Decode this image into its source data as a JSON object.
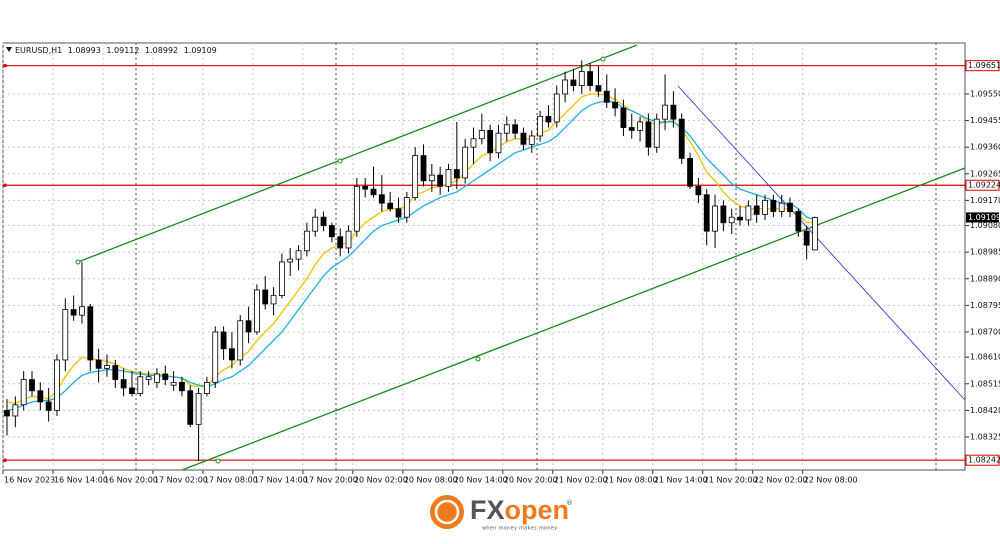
{
  "chart_data": {
    "type": "candlestick",
    "symbol": "EURUSD,H1",
    "categories": [
      "16 Nov 2023",
      null,
      null,
      null,
      null,
      null,
      "16 Nov 14:00",
      null,
      null,
      null,
      null,
      null,
      "16 Nov 20:00",
      null,
      null,
      null,
      null,
      null,
      "17 Nov 02:00",
      null,
      null,
      null,
      null,
      null,
      "17 Nov 08:00",
      null,
      null,
      null,
      null,
      null,
      "17 Nov 14:00",
      null,
      null,
      null,
      null,
      null,
      "17 Nov 20:00",
      null,
      null,
      null,
      null,
      null,
      "20 Nov 02:00",
      null,
      null,
      null,
      null,
      null,
      "20 Nov 08:00",
      null,
      null,
      null,
      null,
      null,
      "20 Nov 14:00",
      null,
      null,
      null,
      null,
      null,
      "20 Nov 20:00",
      null,
      null,
      null,
      null,
      null,
      "21 Nov 02:00",
      null,
      null,
      null,
      null,
      null,
      "21 Nov 08:00",
      null,
      null,
      null,
      null,
      null,
      "21 Nov 14:00",
      null,
      null,
      null,
      null,
      null,
      "21 Nov 20:00",
      null,
      null,
      null,
      null,
      null,
      "22 Nov 02:00",
      null,
      null,
      null,
      null,
      null,
      "22 Nov 08:00",
      null
    ],
    "open": [
      1.0842,
      1.084,
      1.0844,
      1.0853,
      1.0849,
      1.0845,
      1.0842,
      1.086,
      1.0878,
      1.0876,
      1.0879,
      1.086,
      1.0857,
      1.0858,
      1.0853,
      1.085,
      1.0848,
      1.0853,
      1.0852,
      1.0855,
      1.0851,
      1.0852,
      1.0849,
      1.0837,
      1.0848,
      1.0852,
      1.087,
      1.0864,
      1.086,
      1.0874,
      1.087,
      1.0885,
      1.088,
      1.0883,
      1.0895,
      1.0896,
      1.0899,
      1.0906,
      1.0911,
      1.0908,
      1.0904,
      1.09,
      1.0906,
      1.0922,
      1.0921,
      1.0919,
      1.0916,
      1.0914,
      1.0911,
      1.0918,
      1.0933,
      1.0924,
      1.0926,
      1.0922,
      1.0928,
      1.0925,
      1.0936,
      1.0939,
      1.0942,
      1.0934,
      1.0941,
      1.0944,
      1.0941,
      1.0937,
      1.094,
      1.0947,
      1.0945,
      1.0955,
      1.096,
      1.0958,
      1.0963,
      1.0958,
      1.0956,
      1.0952,
      1.095,
      1.0943,
      1.0942,
      1.0945,
      1.0936,
      1.0946,
      1.0951,
      1.0946,
      1.0932,
      1.0922,
      1.0919,
      1.0906,
      1.0915,
      1.0909,
      1.0911,
      1.091,
      1.0915,
      1.0912,
      1.0917,
      1.0913,
      1.0916,
      1.0913,
      1.0906,
      1.08993
    ],
    "high": [
      1.0846,
      1.0847,
      1.0856,
      1.0856,
      1.0852,
      1.085,
      1.0862,
      1.0882,
      1.0883,
      1.0895,
      1.088,
      1.0864,
      1.0862,
      1.086,
      1.0857,
      1.0856,
      1.0856,
      1.0856,
      1.0857,
      1.0858,
      1.0856,
      1.0854,
      1.0851,
      1.085,
      1.0854,
      1.0872,
      1.0872,
      1.087,
      1.0876,
      1.0879,
      1.0887,
      1.089,
      1.0886,
      1.0898,
      1.09,
      1.0901,
      1.0909,
      1.0914,
      1.0913,
      1.0909,
      1.0907,
      1.0908,
      1.0925,
      1.0925,
      1.0929,
      1.0926,
      1.092,
      1.0918,
      1.092,
      1.0936,
      1.0937,
      1.093,
      1.0929,
      1.093,
      1.0945,
      1.0939,
      1.0943,
      1.0948,
      1.0944,
      1.0944,
      1.0947,
      1.0946,
      1.0943,
      1.0942,
      1.0949,
      1.0951,
      1.0958,
      1.0963,
      1.0964,
      1.0967,
      1.0966,
      1.0965,
      1.0962,
      1.0957,
      1.0953,
      1.0948,
      1.0947,
      1.0948,
      1.0948,
      1.0962,
      1.0956,
      1.0948,
      1.0934,
      1.0925,
      1.0921,
      1.0919,
      1.0917,
      1.0914,
      1.0915,
      1.0917,
      1.0919,
      1.0919,
      1.0919,
      1.0919,
      1.0918,
      1.0914,
      1.0908,
      1.09112
    ],
    "low": [
      1.0833,
      1.0836,
      1.0842,
      1.0847,
      1.0842,
      1.0838,
      1.084,
      1.0856,
      1.0874,
      1.0873,
      1.0856,
      1.0852,
      1.0854,
      1.085,
      1.0847,
      1.0847,
      1.0847,
      1.0851,
      1.085,
      1.0851,
      1.0849,
      1.0847,
      1.0836,
      1.0824,
      1.0847,
      1.085,
      1.086,
      1.0857,
      1.0858,
      1.0866,
      1.0869,
      1.0878,
      1.0876,
      1.0882,
      1.089,
      1.0892,
      1.0897,
      1.0904,
      1.0906,
      1.0902,
      1.0897,
      1.0898,
      1.0904,
      1.0918,
      1.0918,
      1.0913,
      1.0913,
      1.0909,
      1.0909,
      1.0917,
      1.0922,
      1.092,
      1.0919,
      1.092,
      1.0921,
      1.0923,
      1.093,
      1.0937,
      1.0931,
      1.0932,
      1.0938,
      1.0939,
      1.0935,
      1.0934,
      1.0938,
      1.0943,
      1.0943,
      1.0952,
      1.0956,
      1.0955,
      1.0956,
      1.0954,
      1.095,
      1.0947,
      1.094,
      1.0939,
      1.0938,
      1.0933,
      1.0934,
      1.0942,
      1.0943,
      1.093,
      1.0921,
      1.0916,
      1.0901,
      1.09,
      1.0906,
      1.0905,
      1.0908,
      1.0908,
      1.0909,
      1.091,
      1.0911,
      1.0911,
      1.0911,
      1.0904,
      1.0896,
      1.08992
    ],
    "close": [
      1.084,
      1.0844,
      1.0853,
      1.0849,
      1.0845,
      1.0842,
      1.086,
      1.0878,
      1.0876,
      1.0879,
      1.086,
      1.0857,
      1.0858,
      1.0853,
      1.085,
      1.0848,
      1.0854,
      1.0854,
      1.0855,
      1.0853,
      1.0852,
      1.0849,
      1.0837,
      1.0848,
      1.0852,
      1.087,
      1.0864,
      1.086,
      1.0874,
      1.087,
      1.0885,
      1.088,
      1.0883,
      1.0895,
      1.0896,
      1.0899,
      1.0906,
      1.0911,
      1.0908,
      1.0904,
      1.09,
      1.0906,
      1.0922,
      1.0921,
      1.0919,
      1.0916,
      1.0914,
      1.0911,
      1.0918,
      1.0933,
      1.0924,
      1.0926,
      1.0922,
      1.0928,
      1.0925,
      1.0936,
      1.0939,
      1.0942,
      1.0934,
      1.0941,
      1.0944,
      1.0941,
      1.0937,
      1.094,
      1.0947,
      1.0945,
      1.0955,
      1.096,
      1.0958,
      1.0963,
      1.0958,
      1.0956,
      1.0952,
      1.095,
      1.0943,
      1.0942,
      1.0945,
      1.0936,
      1.0946,
      1.0951,
      1.0946,
      1.0932,
      1.0922,
      1.0919,
      1.0906,
      1.0915,
      1.0909,
      1.0911,
      1.091,
      1.0915,
      1.0912,
      1.0917,
      1.0913,
      1.0916,
      1.0913,
      1.0906,
      1.0901,
      1.09109
    ],
    "up_color": "#ffffff",
    "down_color": "#000000",
    "overlays": [
      {
        "color": "#f2c200",
        "values": [
          1.0845,
          1.08445,
          1.0846,
          1.0847,
          1.08468,
          1.0846,
          1.0849,
          1.0854,
          1.0858,
          1.0861,
          1.08605,
          1.086,
          1.08595,
          1.08585,
          1.0857,
          1.0856,
          1.08555,
          1.0855,
          1.0855,
          1.08545,
          1.0854,
          1.08535,
          1.0851,
          1.08505,
          1.08505,
          1.0854,
          1.08565,
          1.0858,
          1.0861,
          1.0863,
          1.0867,
          1.087,
          1.0873,
          1.0877,
          1.0881,
          1.0885,
          1.0889,
          1.0894,
          1.0898,
          1.09,
          1.0901,
          1.0902,
          1.0906,
          1.0909,
          1.0911,
          1.0913,
          1.0914,
          1.0914,
          1.0915,
          1.0919,
          1.092,
          1.09215,
          1.0922,
          1.0923,
          1.0924,
          1.0927,
          1.093,
          1.0933,
          1.0934,
          1.0936,
          1.0938,
          1.0939,
          1.0939,
          1.0939,
          1.0941,
          1.0942,
          1.0945,
          1.0948,
          1.0951,
          1.0954,
          1.0955,
          1.0955,
          1.09545,
          1.0953,
          1.0951,
          1.0949,
          1.09475,
          1.0945,
          1.0944,
          1.0945,
          1.09455,
          1.0942,
          1.0938,
          1.0933,
          1.0927,
          1.0924,
          1.092,
          1.0917,
          1.0915,
          1.0914,
          1.0914,
          1.0914,
          1.0914,
          1.0914,
          1.0914,
          1.0912,
          1.0909,
          1.0909
        ]
      },
      {
        "color": "#1ab2e8",
        "values": [
          1.0842,
          1.08425,
          1.0844,
          1.0845,
          1.08455,
          1.08455,
          1.08465,
          1.0849,
          1.0852,
          1.08545,
          1.08555,
          1.0856,
          1.08565,
          1.08565,
          1.0856,
          1.08555,
          1.0855,
          1.08545,
          1.08545,
          1.0854,
          1.0854,
          1.08535,
          1.0852,
          1.0851,
          1.08505,
          1.08515,
          1.0853,
          1.0854,
          1.0856,
          1.0858,
          1.0861,
          1.0864,
          1.0867,
          1.087,
          1.0874,
          1.0878,
          1.0882,
          1.0886,
          1.089,
          1.0893,
          1.0895,
          1.0897,
          1.09,
          1.0903,
          1.0906,
          1.0908,
          1.0909,
          1.091,
          1.0911,
          1.0913,
          1.0915,
          1.09165,
          1.0918,
          1.0919,
          1.092,
          1.0922,
          1.0924,
          1.0926,
          1.0928,
          1.093,
          1.0932,
          1.0934,
          1.0935,
          1.0936,
          1.0937,
          1.0938,
          1.094,
          1.0943,
          1.0946,
          1.0949,
          1.0951,
          1.0952,
          1.09525,
          1.0952,
          1.095,
          1.0949,
          1.09475,
          1.0946,
          1.0945,
          1.0945,
          1.0945,
          1.0943,
          1.094,
          1.0936,
          1.0932,
          1.0929,
          1.0926,
          1.0923,
          1.0921,
          1.092,
          1.0919,
          1.0918,
          1.0917,
          1.0916,
          1.0916,
          1.0914,
          1.0911,
          1.091
        ]
      }
    ],
    "levels": [
      {
        "value": 1.09651,
        "color": "#e00000"
      },
      {
        "value": 1.09224,
        "color": "#e00000"
      },
      {
        "value": 1.08242,
        "color": "#e00000"
      }
    ],
    "ylim": [
      1.08207,
      1.09732
    ],
    "yticks": [
      {
        "value": 1.0955,
        "label": "1.09550"
      },
      1.09455,
      {
        "value": 1.0936,
        "label": "1.09360"
      },
      1.09265,
      {
        "value": 1.0917,
        "label": "1.09170"
      },
      {
        "value": 1.0908,
        "label": "1.09080"
      },
      1.08985,
      {
        "value": 1.0889,
        "label": "1.08890"
      },
      1.08795,
      {
        "value": 1.087,
        "label": "1.08700"
      },
      {
        "value": 1.0861,
        "label": "1.08610"
      },
      1.08515,
      {
        "value": 1.0842,
        "label": "1.08420"
      },
      1.08325
    ],
    "grid": true
  },
  "logo": {
    "fx": "FX",
    "open": "open",
    "registered": "®",
    "tagline": "when money makes money"
  }
}
